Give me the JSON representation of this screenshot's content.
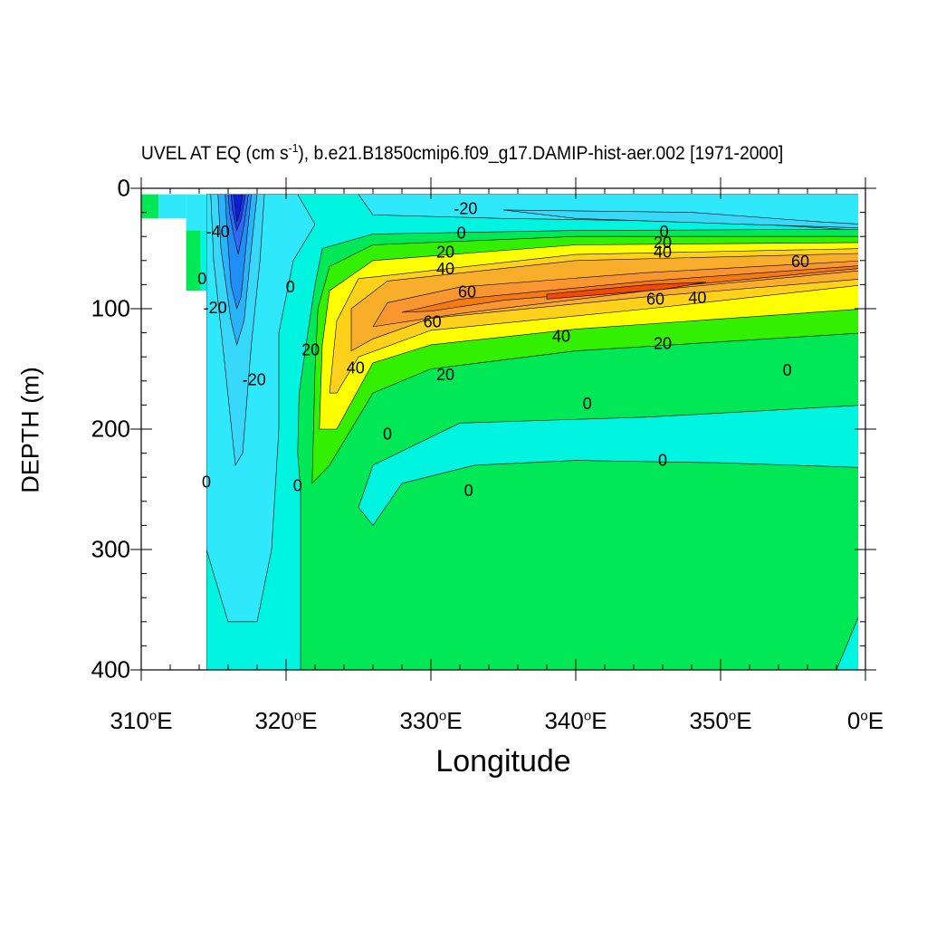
{
  "title": {
    "prefix": "UVEL AT EQ (cm s",
    "exponent": "-1",
    "suffix": "), b.e21.B1850cmip6.f09_g17.DAMIP-hist-aer.002 [1971-2000]"
  },
  "chart_data": {
    "type": "heatmap",
    "subtype": "filled-contour",
    "xlabel": "Longitude",
    "ylabel": "DEPTH (m)",
    "xlim": [
      310,
      360
    ],
    "ylim": [
      400,
      0
    ],
    "x_ticks": [
      {
        "value": 310,
        "num": "310",
        "deg": "o",
        "suffix": "E"
      },
      {
        "value": 320,
        "num": "320",
        "deg": "o",
        "suffix": "E"
      },
      {
        "value": 330,
        "num": "330",
        "deg": "o",
        "suffix": "E"
      },
      {
        "value": 340,
        "num": "340",
        "deg": "o",
        "suffix": "E"
      },
      {
        "value": 350,
        "num": "350",
        "deg": "o",
        "suffix": "E"
      },
      {
        "value": 360,
        "num": "0",
        "deg": "o",
        "suffix": "E"
      }
    ],
    "y_ticks": [
      {
        "value": 0,
        "label": "0"
      },
      {
        "value": 100,
        "label": "100"
      },
      {
        "value": 200,
        "label": "200"
      },
      {
        "value": 300,
        "label": "300"
      },
      {
        "value": 400,
        "label": "400"
      }
    ],
    "contour_interval": 10,
    "colors": {
      "lt_-70": "#0a1fd8",
      "-70_-60": "#1a3ef0",
      "-60_-50": "#2a6af5",
      "-50_-40": "#1f8ff7",
      "-40_-30": "#29b4fa",
      "-30_-20": "#38d8fb",
      "-20_-10": "#30e8fb",
      "-10_0": "#00f4e0",
      "0_10": "#00e856",
      "10_20": "#33f000",
      "20_30": "#ffff00",
      "30_40": "#ffd11a",
      "40_50": "#f9ae2b",
      "50_60": "#f99630",
      "60_70": "#f47a12",
      "gt_70": "#f04a05"
    },
    "regions": [
      {
        "level": "-10_0",
        "outline": [
          [
            314.5,
            5
          ],
          [
            360,
            5
          ],
          [
            360,
            400
          ],
          [
            314.5,
            400
          ]
        ]
      },
      {
        "level": "-20_-10",
        "outline": [
          [
            314.5,
            5
          ],
          [
            320.8,
            5
          ],
          [
            322,
            30
          ],
          [
            320.5,
            60
          ],
          [
            319.5,
            120
          ],
          [
            319.5,
            200
          ],
          [
            319,
            300
          ],
          [
            318,
            360
          ],
          [
            316,
            360
          ],
          [
            314.5,
            300
          ]
        ]
      },
      {
        "level": "-30_-20",
        "outline": [
          [
            314.8,
            5
          ],
          [
            318.5,
            5
          ],
          [
            318.2,
            60
          ],
          [
            317.6,
            130
          ],
          [
            317,
            220
          ],
          [
            316.5,
            230
          ],
          [
            315.8,
            150
          ],
          [
            315,
            60
          ]
        ]
      },
      {
        "level": "-40_-30",
        "outline": [
          [
            315.3,
            5
          ],
          [
            318,
            5
          ],
          [
            317.6,
            50
          ],
          [
            317.1,
            110
          ],
          [
            316.6,
            130
          ],
          [
            316.2,
            110
          ],
          [
            315.5,
            50
          ]
        ]
      },
      {
        "level": "-50_-40",
        "outline": [
          [
            315.8,
            5
          ],
          [
            317.6,
            5
          ],
          [
            317.3,
            40
          ],
          [
            316.9,
            90
          ],
          [
            316.6,
            100
          ],
          [
            316.2,
            80
          ],
          [
            315.9,
            30
          ]
        ]
      },
      {
        "level": "-60_-50",
        "outline": [
          [
            316,
            5
          ],
          [
            317.4,
            5
          ],
          [
            317.1,
            30
          ],
          [
            316.7,
            55
          ],
          [
            316.4,
            40
          ],
          [
            316.1,
            20
          ]
        ]
      },
      {
        "level": "-70_-60",
        "outline": [
          [
            316.2,
            5
          ],
          [
            317.2,
            5
          ],
          [
            316.9,
            25
          ],
          [
            316.6,
            35
          ],
          [
            316.3,
            18
          ]
        ]
      },
      {
        "level": "lt_-70",
        "outline": [
          [
            316.4,
            5
          ],
          [
            317,
            5
          ],
          [
            316.8,
            20
          ],
          [
            316.6,
            28
          ],
          [
            316.5,
            15
          ]
        ]
      },
      {
        "level": "-20_-10",
        "outline": [
          [
            325,
            5
          ],
          [
            360,
            5
          ],
          [
            360,
            35
          ],
          [
            350,
            28
          ],
          [
            335,
            25
          ],
          [
            326,
            22
          ]
        ]
      },
      {
        "level": "-30_-20",
        "outline": [
          [
            335,
            18
          ],
          [
            348,
            20
          ],
          [
            357,
            28
          ],
          [
            360,
            30
          ],
          [
            360,
            33
          ],
          [
            352,
            30
          ],
          [
            340,
            25
          ]
        ]
      },
      {
        "level": "0_10",
        "outline": [
          [
            321,
            400
          ],
          [
            321,
            250
          ],
          [
            320.8,
            220
          ],
          [
            320.9,
            170
          ],
          [
            321.5,
            120
          ],
          [
            322,
            80
          ],
          [
            322.5,
            50
          ],
          [
            326,
            38
          ],
          [
            340,
            35
          ],
          [
            360,
            34
          ],
          [
            360,
            400
          ]
        ]
      },
      {
        "level": "-10_0",
        "outline": [
          [
            326,
            230
          ],
          [
            332,
            195
          ],
          [
            345,
            190
          ],
          [
            360,
            180
          ],
          [
            360,
            232
          ],
          [
            350,
            228
          ],
          [
            340,
            226
          ],
          [
            333,
            230
          ],
          [
            328,
            245
          ],
          [
            326,
            280
          ],
          [
            325,
            265
          ]
        ]
      },
      {
        "level": "-10_0",
        "outline": [
          [
            358,
            400
          ],
          [
            360,
            342
          ],
          [
            360,
            400
          ]
        ]
      },
      {
        "level": "10_20",
        "outline": [
          [
            321.8,
            245
          ],
          [
            322,
            150
          ],
          [
            322.2,
            100
          ],
          [
            323,
            65
          ],
          [
            326,
            47
          ],
          [
            340,
            40
          ],
          [
            360,
            40
          ],
          [
            360,
            120
          ],
          [
            340,
            135
          ],
          [
            330,
            150
          ],
          [
            326,
            170
          ],
          [
            323,
            230
          ]
        ]
      },
      {
        "level": "20_30",
        "outline": [
          [
            322.3,
            200
          ],
          [
            322.5,
            130
          ],
          [
            323,
            85
          ],
          [
            326,
            60
          ],
          [
            340,
            47
          ],
          [
            360,
            45
          ],
          [
            360,
            100
          ],
          [
            340,
            117
          ],
          [
            330,
            130
          ],
          [
            326,
            145
          ],
          [
            323.5,
            200
          ]
        ]
      },
      {
        "level": "30_40",
        "outline": [
          [
            323,
            170
          ],
          [
            323.5,
            110
          ],
          [
            325,
            75
          ],
          [
            340,
            55
          ],
          [
            360,
            50
          ],
          [
            360,
            80
          ],
          [
            345,
            100
          ],
          [
            330,
            118
          ],
          [
            325,
            140
          ],
          [
            323.5,
            170
          ]
        ]
      },
      {
        "level": "40_50",
        "outline": [
          [
            324.5,
            135
          ],
          [
            324.5,
            100
          ],
          [
            327,
            77
          ],
          [
            340,
            60
          ],
          [
            360,
            54
          ],
          [
            360,
            75
          ],
          [
            345,
            90
          ],
          [
            330,
            108
          ],
          [
            326,
            125
          ]
        ]
      },
      {
        "level": "50_60",
        "outline": [
          [
            326,
            115
          ],
          [
            327,
            95
          ],
          [
            332,
            82
          ],
          [
            345,
            70
          ],
          [
            360,
            60
          ],
          [
            360,
            68
          ],
          [
            345,
            85
          ],
          [
            332,
            104
          ]
        ]
      },
      {
        "level": "60_70",
        "outline": [
          [
            328,
            103
          ],
          [
            332,
            92
          ],
          [
            345,
            77
          ],
          [
            360,
            64
          ],
          [
            360,
            66
          ],
          [
            348,
            80
          ],
          [
            335,
            93
          ],
          [
            330,
            102
          ]
        ]
      },
      {
        "level": "gt_70",
        "outline": [
          [
            338,
            88
          ],
          [
            345,
            80
          ],
          [
            349,
            78
          ],
          [
            346,
            84
          ],
          [
            338,
            92
          ]
        ]
      }
    ],
    "land_mask": [
      [
        310,
        5
      ],
      [
        313,
        5
      ],
      [
        313,
        25
      ],
      [
        310,
        25
      ]
    ],
    "contour_labels": [
      {
        "text": "-20",
        "x": 332.4,
        "y": 18
      },
      {
        "text": "0",
        "x": 332.1,
        "y": 38
      },
      {
        "text": "0",
        "x": 346.1,
        "y": 37
      },
      {
        "text": "20",
        "x": 331,
        "y": 54
      },
      {
        "text": "20",
        "x": 346,
        "y": 46
      },
      {
        "text": "40",
        "x": 331,
        "y": 68
      },
      {
        "text": "40",
        "x": 346,
        "y": 54
      },
      {
        "text": "60",
        "x": 332.5,
        "y": 87
      },
      {
        "text": "60",
        "x": 345.5,
        "y": 93
      },
      {
        "text": "60",
        "x": 355.5,
        "y": 62
      },
      {
        "text": "60",
        "x": 330.1,
        "y": 112
      },
      {
        "text": "40",
        "x": 348.4,
        "y": 92
      },
      {
        "text": "40",
        "x": 339,
        "y": 124
      },
      {
        "text": "40",
        "x": 324.8,
        "y": 150
      },
      {
        "text": "20",
        "x": 331,
        "y": 156
      },
      {
        "text": "20",
        "x": 346,
        "y": 130
      },
      {
        "text": "20",
        "x": 321.7,
        "y": 135
      },
      {
        "text": "0",
        "x": 320.3,
        "y": 83
      },
      {
        "text": "0",
        "x": 354.6,
        "y": 152
      },
      {
        "text": "0",
        "x": 340.8,
        "y": 180
      },
      {
        "text": "0",
        "x": 327,
        "y": 205
      },
      {
        "text": "0",
        "x": 346,
        "y": 227
      },
      {
        "text": "0",
        "x": 332.6,
        "y": 252
      },
      {
        "text": "0",
        "x": 320.8,
        "y": 248
      },
      {
        "text": "0",
        "x": 314.5,
        "y": 245
      },
      {
        "text": "-40",
        "x": 315.3,
        "y": 37
      },
      {
        "text": "0",
        "x": 314.2,
        "y": 76
      },
      {
        "text": "-20",
        "x": 315.1,
        "y": 100
      },
      {
        "text": "-20",
        "x": 317.8,
        "y": 160
      }
    ]
  }
}
